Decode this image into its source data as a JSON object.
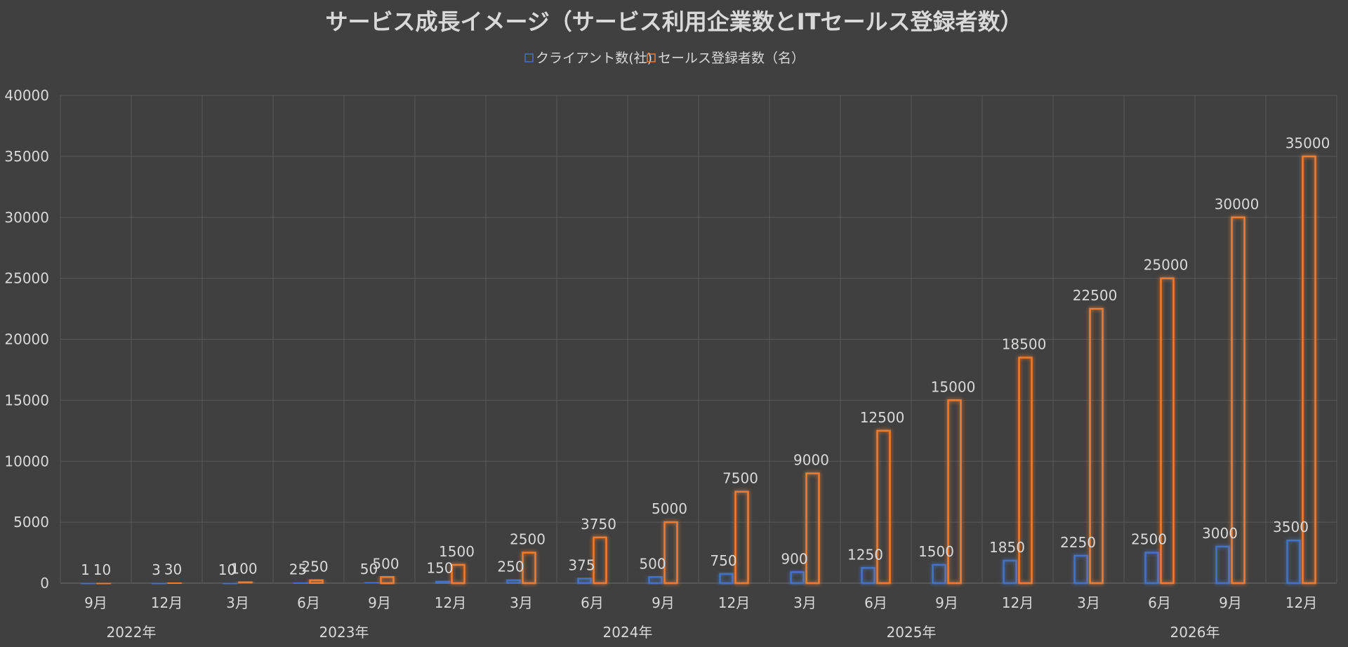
{
  "chart_data": {
    "type": "bar",
    "title": "サービス成長イメージ（サービス利用企業数とITセールス登録者数）",
    "categories": [
      "9月",
      "12月",
      "3月",
      "6月",
      "9月",
      "12月",
      "3月",
      "6月",
      "9月",
      "12月",
      "3月",
      "6月",
      "9月",
      "12月",
      "3月",
      "6月",
      "9月",
      "12月"
    ],
    "year_groups": [
      {
        "label": "2022年",
        "start": 0,
        "end": 1
      },
      {
        "label": "2023年",
        "start": 2,
        "end": 5
      },
      {
        "label": "2024年",
        "start": 6,
        "end": 9
      },
      {
        "label": "2025年",
        "start": 10,
        "end": 13
      },
      {
        "label": "2026年",
        "start": 14,
        "end": 17
      }
    ],
    "series": [
      {
        "name": "クライアント数(社)",
        "color": "#4472c4",
        "values": [
          1,
          3,
          10,
          25,
          50,
          150,
          250,
          375,
          500,
          750,
          900,
          1250,
          1500,
          1850,
          2250,
          2500,
          3000,
          3500
        ]
      },
      {
        "name": "セールス登録者数（名）",
        "color": "#ed7d31",
        "values": [
          10,
          30,
          100,
          250,
          500,
          1500,
          2500,
          3750,
          5000,
          7500,
          9000,
          12500,
          15000,
          18500,
          22500,
          25000,
          30000,
          35000
        ]
      }
    ],
    "ylim": [
      0,
      40000
    ],
    "yticks": [
      0,
      5000,
      10000,
      15000,
      20000,
      25000,
      30000,
      35000,
      40000
    ],
    "grid": true,
    "legend_position": "top-center",
    "xlabel": "",
    "ylabel": ""
  }
}
